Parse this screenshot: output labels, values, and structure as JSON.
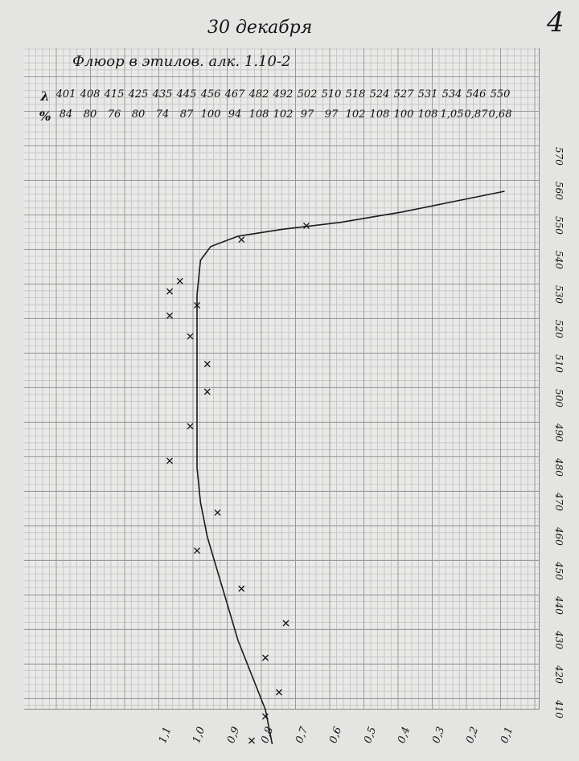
{
  "page_number": "4",
  "date_heading": "30 декабря",
  "chart_data": {
    "type": "line",
    "title": "Флюор в этилов. алк. 1.10-2",
    "table": {
      "row_labels": [
        "λ",
        "%"
      ],
      "wavelengths": [
        "401",
        "408",
        "415",
        "425",
        "435",
        "445",
        "456",
        "467",
        "482",
        "492",
        "502",
        "510",
        "518",
        "524",
        "527",
        "531",
        "534",
        "546",
        "550"
      ],
      "percents": [
        "84",
        "80",
        "76",
        "80",
        "74",
        "87",
        "100",
        "94",
        "108",
        "102",
        "97",
        "97",
        "102",
        "108",
        "100",
        "108",
        "1,05",
        "0,87",
        "0,68"
      ]
    },
    "x_axis": {
      "label": "",
      "direction": "reversed",
      "range": [
        1.15,
        0.05
      ],
      "ticks": [
        "1,1",
        "1,0",
        "0,9",
        "0,8",
        "0,7",
        "0,6",
        "0,5",
        "0,4",
        "0,3",
        "0,2",
        "0,1"
      ]
    },
    "y_axis": {
      "label": "",
      "position": "right",
      "range": [
        410,
        570
      ],
      "ticks": [
        "410",
        "420",
        "430",
        "440",
        "450",
        "460",
        "470",
        "480",
        "490",
        "500",
        "510",
        "520",
        "530",
        "540",
        "550",
        "560",
        "570"
      ]
    },
    "grid": true,
    "points": [
      {
        "wavelength": 401,
        "ratio": 0.84
      },
      {
        "wavelength": 408,
        "ratio": 0.8
      },
      {
        "wavelength": 415,
        "ratio": 0.76
      },
      {
        "wavelength": 425,
        "ratio": 0.8
      },
      {
        "wavelength": 435,
        "ratio": 0.74
      },
      {
        "wavelength": 445,
        "ratio": 0.87
      },
      {
        "wavelength": 456,
        "ratio": 1.0
      },
      {
        "wavelength": 467,
        "ratio": 0.94
      },
      {
        "wavelength": 482,
        "ratio": 1.08
      },
      {
        "wavelength": 492,
        "ratio": 1.02
      },
      {
        "wavelength": 502,
        "ratio": 0.97
      },
      {
        "wavelength": 510,
        "ratio": 0.97
      },
      {
        "wavelength": 518,
        "ratio": 1.02
      },
      {
        "wavelength": 524,
        "ratio": 1.08
      },
      {
        "wavelength": 527,
        "ratio": 1.0
      },
      {
        "wavelength": 531,
        "ratio": 1.08
      },
      {
        "wavelength": 534,
        "ratio": 1.05
      },
      {
        "wavelength": 546,
        "ratio": 0.87
      },
      {
        "wavelength": 550,
        "ratio": 0.68
      }
    ],
    "curve": [
      {
        "wavelength": 400,
        "ratio": 0.78
      },
      {
        "wavelength": 410,
        "ratio": 0.8
      },
      {
        "wavelength": 420,
        "ratio": 0.84
      },
      {
        "wavelength": 430,
        "ratio": 0.88
      },
      {
        "wavelength": 440,
        "ratio": 0.91
      },
      {
        "wavelength": 450,
        "ratio": 0.94
      },
      {
        "wavelength": 460,
        "ratio": 0.97
      },
      {
        "wavelength": 470,
        "ratio": 0.99
      },
      {
        "wavelength": 480,
        "ratio": 1.0
      },
      {
        "wavelength": 490,
        "ratio": 1.0
      },
      {
        "wavelength": 500,
        "ratio": 1.0
      },
      {
        "wavelength": 510,
        "ratio": 1.0
      },
      {
        "wavelength": 520,
        "ratio": 1.0
      },
      {
        "wavelength": 530,
        "ratio": 1.0
      },
      {
        "wavelength": 540,
        "ratio": 0.99
      },
      {
        "wavelength": 544,
        "ratio": 0.96
      },
      {
        "wavelength": 547,
        "ratio": 0.88
      },
      {
        "wavelength": 549,
        "ratio": 0.75
      },
      {
        "wavelength": 551,
        "ratio": 0.58
      },
      {
        "wavelength": 554,
        "ratio": 0.4
      },
      {
        "wavelength": 557,
        "ratio": 0.25
      },
      {
        "wavelength": 560,
        "ratio": 0.1
      }
    ],
    "line_color": "#1a1a1a"
  }
}
